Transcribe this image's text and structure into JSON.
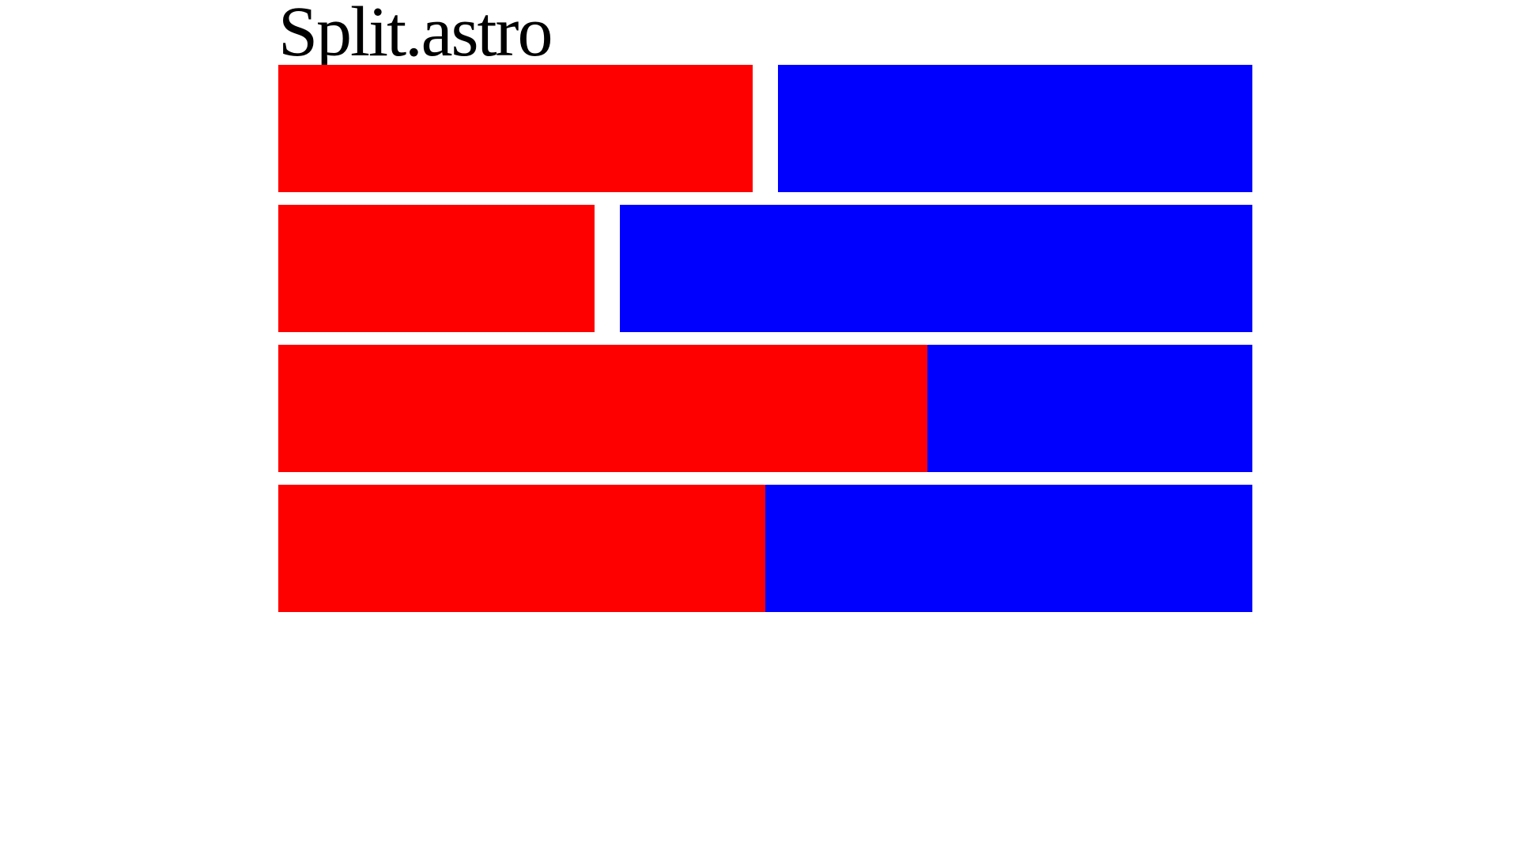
{
  "page": {
    "title": "Split.astro"
  },
  "colors": {
    "background": "#ffffff",
    "left_pane": "#ff0000",
    "right_pane": "#0000ff",
    "title_text": "#000000"
  },
  "rows": [
    {
      "id": "row-1",
      "left_fraction": 0.5,
      "right_fraction": 0.5,
      "gutter": true
    },
    {
      "id": "row-2",
      "left_fraction": 0.333,
      "right_fraction": 0.667,
      "gutter": true
    },
    {
      "id": "row-3",
      "left_fraction": 0.667,
      "right_fraction": 0.333,
      "gutter": false
    },
    {
      "id": "row-4",
      "left_fraction": 0.5,
      "right_fraction": 0.5,
      "gutter": false
    }
  ]
}
